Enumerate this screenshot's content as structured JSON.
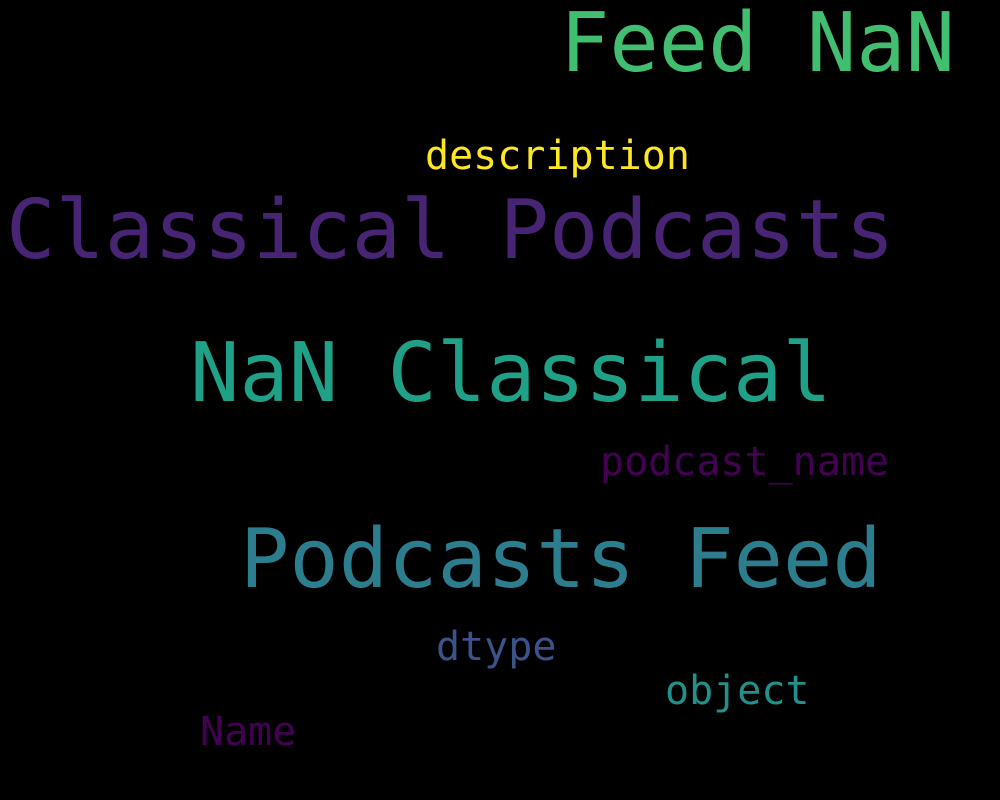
{
  "words": [
    {
      "text": "Feed NaN",
      "color": "#42be71"
    },
    {
      "text": "description",
      "color": "#fde725"
    },
    {
      "text": "Classical Podcasts",
      "color": "#482475"
    },
    {
      "text": "NaN Classical",
      "color": "#1fa187"
    },
    {
      "text": "podcast_name",
      "color": "#440154"
    },
    {
      "text": "Podcasts Feed",
      "color": "#2c7e8e"
    },
    {
      "text": "dtype",
      "color": "#3b528b"
    },
    {
      "text": "object",
      "color": "#21918c"
    },
    {
      "text": "Name",
      "color": "#440154"
    }
  ]
}
